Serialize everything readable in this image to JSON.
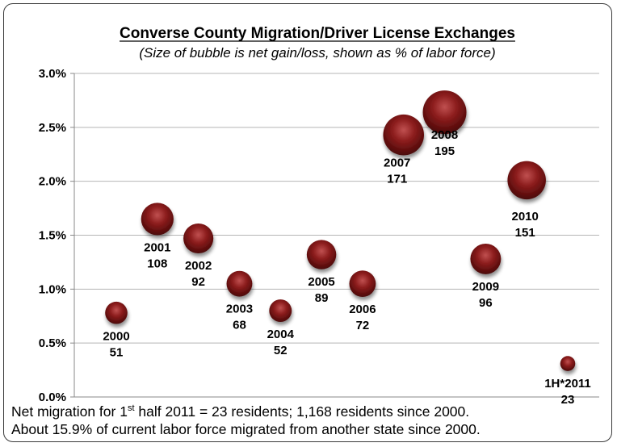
{
  "chart_data": {
    "type": "scatter",
    "title": "Converse County Migration/Driver License Exchanges",
    "subtitle": "(Size of bubble is net gain/loss, shown as % of labor force)",
    "ylim": [
      0,
      3.0
    ],
    "yticks": [
      "0.0%",
      "0.5%",
      "1.0%",
      "1.5%",
      "2.0%",
      "2.5%",
      "3.0%"
    ],
    "ytick_values": [
      0,
      0.5,
      1.0,
      1.5,
      2.0,
      2.5,
      3.0
    ],
    "grid": true,
    "bubble_color": "#8b1c1c",
    "points": [
      {
        "year": "2000",
        "count": "51",
        "value": 0.78
      },
      {
        "year": "2001",
        "count": "108",
        "value": 1.65
      },
      {
        "year": "2002",
        "count": "92",
        "value": 1.47
      },
      {
        "year": "2003",
        "count": "68",
        "value": 1.05
      },
      {
        "year": "2004",
        "count": "52",
        "value": 0.8
      },
      {
        "year": "2005",
        "count": "89",
        "value": 1.32
      },
      {
        "year": "2006",
        "count": "72",
        "value": 1.05
      },
      {
        "year": "2007",
        "count": "171",
        "value": 2.43
      },
      {
        "year": "2008",
        "count": "195",
        "value": 2.64
      },
      {
        "year": "2009",
        "count": "96",
        "value": 1.28
      },
      {
        "year": "2010",
        "count": "151",
        "value": 2.01
      },
      {
        "year": "1H*2011",
        "count": "23",
        "value": 0.31
      }
    ]
  },
  "footnote": {
    "line1_pre": "Net migration for 1",
    "line1_sup": "st",
    "line1_post": " half 2011 = 23 residents; 1,168 residents since 2000.",
    "line2": "About 15.9% of current labor force migrated from another state since 2000."
  }
}
